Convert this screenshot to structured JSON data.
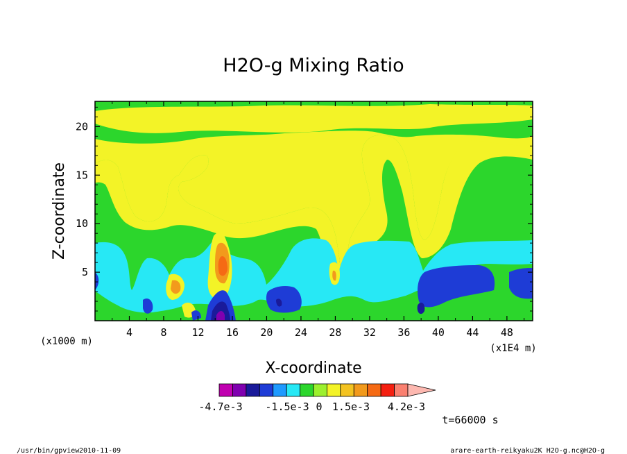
{
  "chart_data": {
    "type": "heatmap",
    "title": "H2O-g Mixing Ratio",
    "xlabel": "X-coordinate",
    "ylabel": "Z-coordinate",
    "x_unit_label": "(x1000 m)",
    "x_scale_label": "(x1E4 m)",
    "xlim": [
      0,
      51
    ],
    "ylim": [
      0,
      22.6
    ],
    "x_ticks": [
      "4",
      "8",
      "12",
      "16",
      "20",
      "24",
      "28",
      "32",
      "36",
      "40",
      "44",
      "48"
    ],
    "y_ticks": [
      "5",
      "10",
      "15",
      "20"
    ],
    "colorbar": {
      "colors": [
        "#c000b0",
        "#8000b0",
        "#1a1a9a",
        "#1e3cd6",
        "#1e9aff",
        "#27e8f5",
        "#2cd62c",
        "#9cf02e",
        "#f3f327",
        "#f3c321",
        "#f29a1c",
        "#f56a14",
        "#f51f10",
        "#fa8070",
        "#fdb8b0"
      ],
      "tick_labels": [
        "-4.7e-3",
        "-1.5e-3",
        "0",
        "1.5e-3",
        "4.2e-3"
      ]
    },
    "legend": "none"
  },
  "annotations": {
    "time": "t=66000 s",
    "program": "/usr/bin/gpview",
    "date": "2010-11-09",
    "source": "arare-earth-reikyaku2K_H2O-g.nc@H2O-g"
  }
}
